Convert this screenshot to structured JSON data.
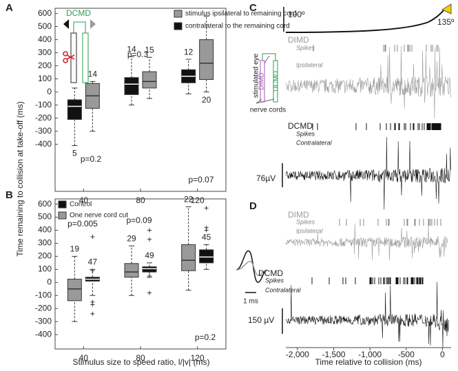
{
  "panels": [
    "A",
    "B",
    "C",
    "D"
  ],
  "chart_data": [
    {
      "type": "box",
      "ylabel": "Time remaining to collision at take-off (ms)",
      "categories": [
        "40",
        "80",
        "120"
      ],
      "ylim": [
        -760,
        640
      ],
      "yticks": [
        -400,
        -300,
        -200,
        -100,
        0,
        100,
        200,
        300,
        400,
        500,
        600
      ],
      "series": [
        {
          "name": "stimulus ipsilateral to remaining cord",
          "color": "#999999",
          "low": [
            -300,
            -50,
            0
          ],
          "q1": [
            -125,
            30,
            95
          ],
          "median": [
            -30,
            80,
            220
          ],
          "q3": [
            65,
            155,
            400
          ],
          "high": [
            80,
            265,
            580
          ],
          "n": [
            14,
            15,
            20
          ]
        },
        {
          "name": "contralateral to the remaining cord",
          "color": "#111111",
          "low": [
            -410,
            -100,
            -15
          ],
          "q1": [
            -210,
            -20,
            70
          ],
          "median": [
            -110,
            60,
            120
          ],
          "q3": [
            -60,
            110,
            170
          ],
          "high": [
            30,
            270,
            250
          ],
          "n": [
            5,
            14,
            12
          ]
        }
      ],
      "annotations": [
        "p=0.2",
        "p=0.3",
        "p=0.07",
        "DCMD"
      ]
    },
    {
      "type": "box",
      "xlabel": "Stimulus size to speed ratio, l/|v| (ms)",
      "categories": [
        "40",
        "80",
        "120"
      ],
      "ylim": [
        -510,
        640
      ],
      "yticks": [
        -400,
        -300,
        -200,
        -100,
        0,
        100,
        200,
        300,
        400,
        500,
        600
      ],
      "series": [
        {
          "name": "Control",
          "color": "#111111",
          "low": [
            -100,
            40,
            100
          ],
          "q1": [
            10,
            80,
            150
          ],
          "median": [
            25,
            105,
            195
          ],
          "q3": [
            40,
            120,
            250
          ],
          "high": [
            100,
            150,
            290
          ],
          "outliers": [
            [
              350,
              90,
              -150,
              -170,
              -240
            ],
            [
              400,
              330,
              50,
              -80
            ],
            [
              570,
              420,
              400
            ]
          ],
          "n": [
            47,
            49,
            45
          ]
        },
        {
          "name": "One nerve cord cut",
          "color": "#999999",
          "low": [
            -300,
            -100,
            -60
          ],
          "q1": [
            -140,
            40,
            90
          ],
          "median": [
            -50,
            80,
            170
          ],
          "q3": [
            25,
            145,
            290
          ],
          "high": [
            200,
            280,
            580
          ],
          "n": [
            19,
            29,
            22
          ]
        }
      ],
      "annotations": [
        "p=0.005",
        "p=0.09",
        "p=0.2"
      ]
    },
    {
      "type": "trace",
      "annotations": [
        "100º",
        "135º",
        "DIMD",
        "Spikes",
        "Ipsilateral",
        "stimulated eye",
        "nerve cords",
        "DIMD",
        "DCMD",
        "DCMD",
        "Spikes",
        "Contralateral",
        "76µV"
      ]
    },
    {
      "type": "trace",
      "xlabel": "Time relative to collision (ms)",
      "xlim": [
        -2160,
        120
      ],
      "xticks": [
        {
          "value": -2000,
          "label": "-2,000"
        },
        {
          "value": -1500,
          "label": "-1,500"
        },
        {
          "value": -1000,
          "label": "-1,000"
        },
        -500,
        0
      ],
      "annotations": [
        "DIMD",
        "Spikes",
        "Ipsilateral",
        "DCMD",
        "Spikes",
        "Contralateral",
        "1 ms",
        "150 µV"
      ]
    }
  ]
}
